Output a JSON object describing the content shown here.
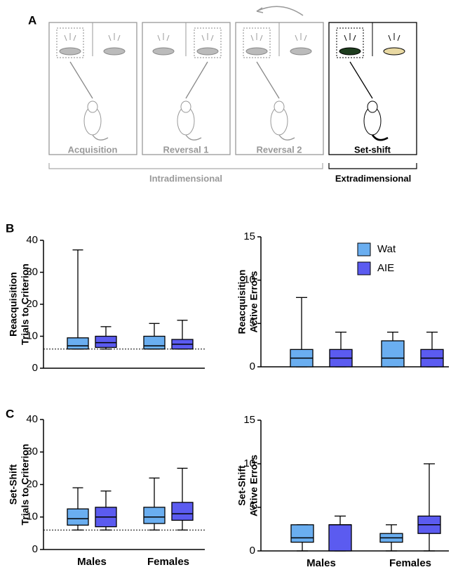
{
  "panel_a": {
    "letter": "A",
    "stages": [
      "Acquisition",
      "Reversal 1",
      "Reversal 2",
      "Set-shift"
    ],
    "groups": [
      "Intradimensional",
      "Extradimensional"
    ]
  },
  "chart_data": [
    {
      "type": "box",
      "panel": "B",
      "ylabel": [
        "Reacquisition",
        "Trials to Criterion"
      ],
      "categories": [
        null,
        null
      ],
      "ylim": [
        0,
        40
      ],
      "yticks": [
        0,
        10,
        20,
        30,
        40
      ],
      "reference_line": 6,
      "series": [
        {
          "color": "#6aaef0",
          "values": [
            {
              "min": 6,
              "q1": 6,
              "median": 7,
              "q3": 9.5,
              "max": 37
            },
            {
              "min": 6,
              "q1": 6,
              "median": 7,
              "q3": 10,
              "max": 14
            }
          ]
        },
        {
          "color": "#5b5bf0",
          "values": [
            {
              "min": 6,
              "q1": 6.5,
              "median": 8,
              "q3": 10,
              "max": 13
            },
            {
              "min": 6,
              "q1": 6,
              "median": 7.5,
              "q3": 9,
              "max": 15
            }
          ]
        }
      ]
    },
    {
      "type": "box",
      "ylabel": [
        "Reacquisition",
        "Active Errors"
      ],
      "categories": [
        null,
        null
      ],
      "ylim": [
        0,
        15
      ],
      "yticks": [
        0,
        5,
        10,
        15
      ],
      "legend": "top-right",
      "series": [
        {
          "name": "Wat",
          "color": "#6aaef0",
          "values": [
            {
              "min": 0,
              "q1": 0,
              "median": 1,
              "q3": 2,
              "max": 8
            },
            {
              "min": 0,
              "q1": 0,
              "median": 1,
              "q3": 3,
              "max": 4
            }
          ]
        },
        {
          "name": "AIE",
          "color": "#5b5bf0",
          "values": [
            {
              "min": 0,
              "q1": 0,
              "median": 1,
              "q3": 2,
              "max": 4
            },
            {
              "min": 0,
              "q1": 0,
              "median": 1,
              "q3": 2,
              "max": 4
            }
          ]
        }
      ]
    },
    {
      "type": "box",
      "panel": "C",
      "ylabel": [
        "Set-Shift",
        "Trials to Criterion"
      ],
      "categories": [
        "Males",
        "Females"
      ],
      "ylim": [
        0,
        40
      ],
      "yticks": [
        0,
        10,
        20,
        30,
        40
      ],
      "reference_line": 6,
      "series": [
        {
          "color": "#6aaef0",
          "values": [
            {
              "min": 6,
              "q1": 7.5,
              "median": 9.5,
              "q3": 12.5,
              "max": 19
            },
            {
              "min": 6,
              "q1": 8,
              "median": 10,
              "q3": 13,
              "max": 22
            }
          ]
        },
        {
          "color": "#5b5bf0",
          "values": [
            {
              "min": 6,
              "q1": 7,
              "median": 10,
              "q3": 13,
              "max": 18
            },
            {
              "min": 6,
              "q1": 9,
              "median": 11,
              "q3": 14.5,
              "max": 25
            }
          ]
        }
      ]
    },
    {
      "type": "box",
      "ylabel": [
        "Set-Shift",
        "Active Errors"
      ],
      "categories": [
        "Males",
        "Females"
      ],
      "ylim": [
        0,
        15
      ],
      "yticks": [
        0,
        5,
        10,
        15
      ],
      "series": [
        {
          "color": "#6aaef0",
          "values": [
            {
              "min": 0,
              "q1": 1,
              "median": 1.5,
              "q3": 3,
              "max": 3
            },
            {
              "min": 0,
              "q1": 1,
              "median": 1.5,
              "q3": 2,
              "max": 3
            }
          ]
        },
        {
          "color": "#5b5bf0",
          "values": [
            {
              "min": 0,
              "q1": 0,
              "median": 3,
              "q3": 3,
              "max": 4
            },
            {
              "min": 0,
              "q1": 2,
              "median": 3,
              "q3": 4,
              "max": 10
            }
          ]
        }
      ]
    }
  ]
}
